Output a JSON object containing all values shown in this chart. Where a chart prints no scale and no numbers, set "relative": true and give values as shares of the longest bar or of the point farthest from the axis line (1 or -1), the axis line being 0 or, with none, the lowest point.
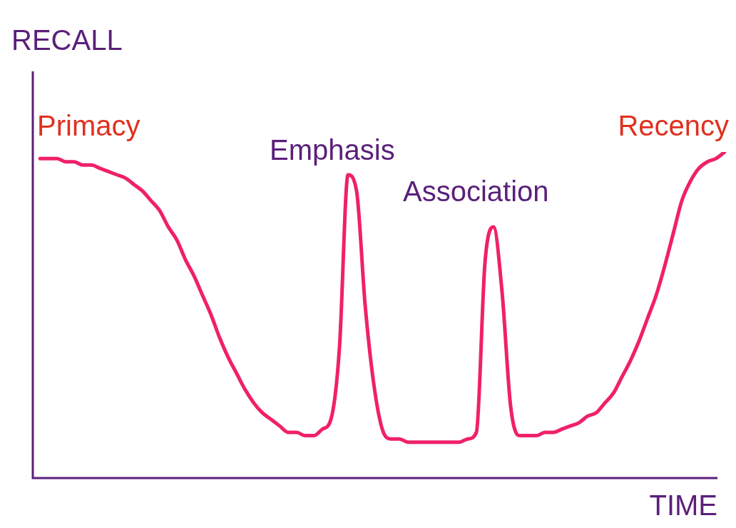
{
  "chart_data": {
    "type": "line",
    "relative": true,
    "xlabel": "TIME",
    "ylabel": "RECALL",
    "marker": "none",
    "categories": [
      null,
      null,
      null,
      null,
      null,
      null,
      null,
      null,
      null,
      null,
      null,
      null,
      null,
      null,
      null,
      null,
      null,
      null,
      null,
      null,
      null,
      null,
      null,
      null,
      null,
      null,
      null,
      null,
      null,
      null,
      null,
      null,
      null,
      null,
      null,
      null,
      null,
      null,
      null,
      null,
      null,
      null,
      null,
      null,
      null,
      null,
      null,
      null,
      null,
      null,
      null,
      null,
      null,
      null,
      null,
      null,
      null,
      null,
      null,
      null,
      null,
      null,
      null,
      null,
      null,
      null,
      null,
      null,
      null,
      null,
      null,
      null,
      null,
      null,
      null,
      null,
      null,
      null,
      null,
      null,
      null
    ],
    "series": [
      {
        "color": "#f0206a",
        "values": [
          0.98,
          0.98,
          0.98,
          0.97,
          0.97,
          0.96,
          0.96,
          0.95,
          0.94,
          0.93,
          0.92,
          0.9,
          0.88,
          0.85,
          0.82,
          0.77,
          0.73,
          0.67,
          0.62,
          0.56,
          0.5,
          0.43,
          0.37,
          0.32,
          0.27,
          0.23,
          0.2,
          0.18,
          0.16,
          0.14,
          0.14,
          0.13,
          0.13,
          0.15,
          0.18,
          0.4,
          0.93,
          0.88,
          0.53,
          0.29,
          0.15,
          0.12,
          0.12,
          0.11,
          0.11,
          0.11,
          0.11,
          0.11,
          0.11,
          0.11,
          0.12,
          0.14,
          0.66,
          0.77,
          0.57,
          0.22,
          0.13,
          0.13,
          0.13,
          0.14,
          0.14,
          0.15,
          0.16,
          0.17,
          0.19,
          0.2,
          0.23,
          0.26,
          0.31,
          0.36,
          0.42,
          0.49,
          0.56,
          0.65,
          0.75,
          0.85,
          0.91,
          0.95,
          0.97,
          0.98,
          1
        ]
      }
    ],
    "annotations": [
      "Primacy",
      "Emphasis",
      "Association",
      "Recency"
    ]
  }
}
